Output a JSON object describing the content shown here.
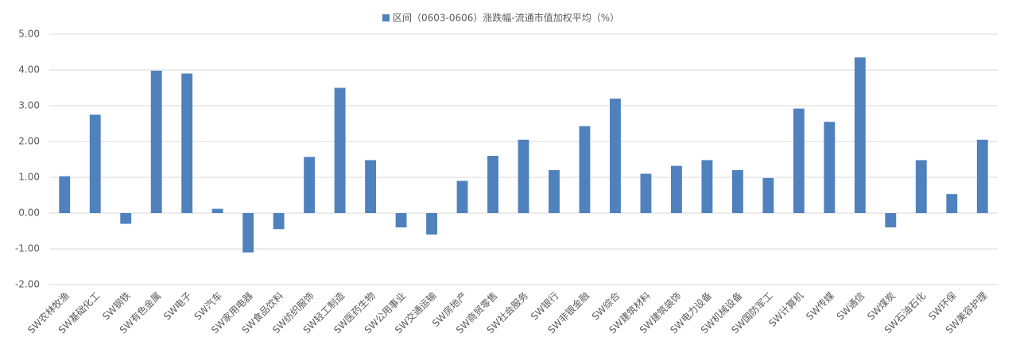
{
  "chart_data": {
    "type": "bar",
    "categories": [
      "SW农林牧渔",
      "SW基础化工",
      "SW钢铁",
      "SW有色金属",
      "SW电子",
      "SW汽车",
      "SW家用电器",
      "SW食品饮料",
      "SW纺织服饰",
      "SW轻工制造",
      "SW医药生物",
      "SW公用事业",
      "SW交通运输",
      "SW房地产",
      "SW商贸零售",
      "SW社会服务",
      "SW银行",
      "SW非银金融",
      "SW综合",
      "SW建筑材料",
      "SW建筑装饰",
      "SW电力设备",
      "SW机械设备",
      "SW国防军工",
      "SW计算机",
      "SW传媒",
      "SW通信",
      "SW煤炭",
      "SW石油石化",
      "SW环保",
      "SW美容护理"
    ],
    "series": [
      {
        "name": "区间（0603-0606）涨跌幅-流通市值加权平均（%）",
        "color": "#4f81bd",
        "values": [
          1.03,
          2.75,
          -0.3,
          3.98,
          3.9,
          0.12,
          -1.1,
          -0.45,
          1.57,
          3.5,
          1.48,
          -0.4,
          -0.6,
          0.9,
          1.6,
          2.05,
          1.2,
          2.43,
          3.2,
          1.1,
          1.32,
          1.48,
          1.2,
          0.98,
          2.92,
          2.55,
          4.35,
          -0.4,
          1.48,
          0.53,
          2.05
        ]
      }
    ],
    "ylim": [
      -2,
      5
    ],
    "yticks": [
      {
        "value": -2,
        "label": "-2.00"
      },
      {
        "value": -1,
        "label": "-1.00"
      },
      {
        "value": 0,
        "label": "0.00"
      },
      {
        "value": 1,
        "label": "1.00"
      },
      {
        "value": 2,
        "label": "2.00"
      },
      {
        "value": 3,
        "label": "3.00"
      },
      {
        "value": 4,
        "label": "4.00"
      },
      {
        "value": 5,
        "label": "5.00"
      }
    ],
    "grid": true,
    "legend": "top"
  }
}
